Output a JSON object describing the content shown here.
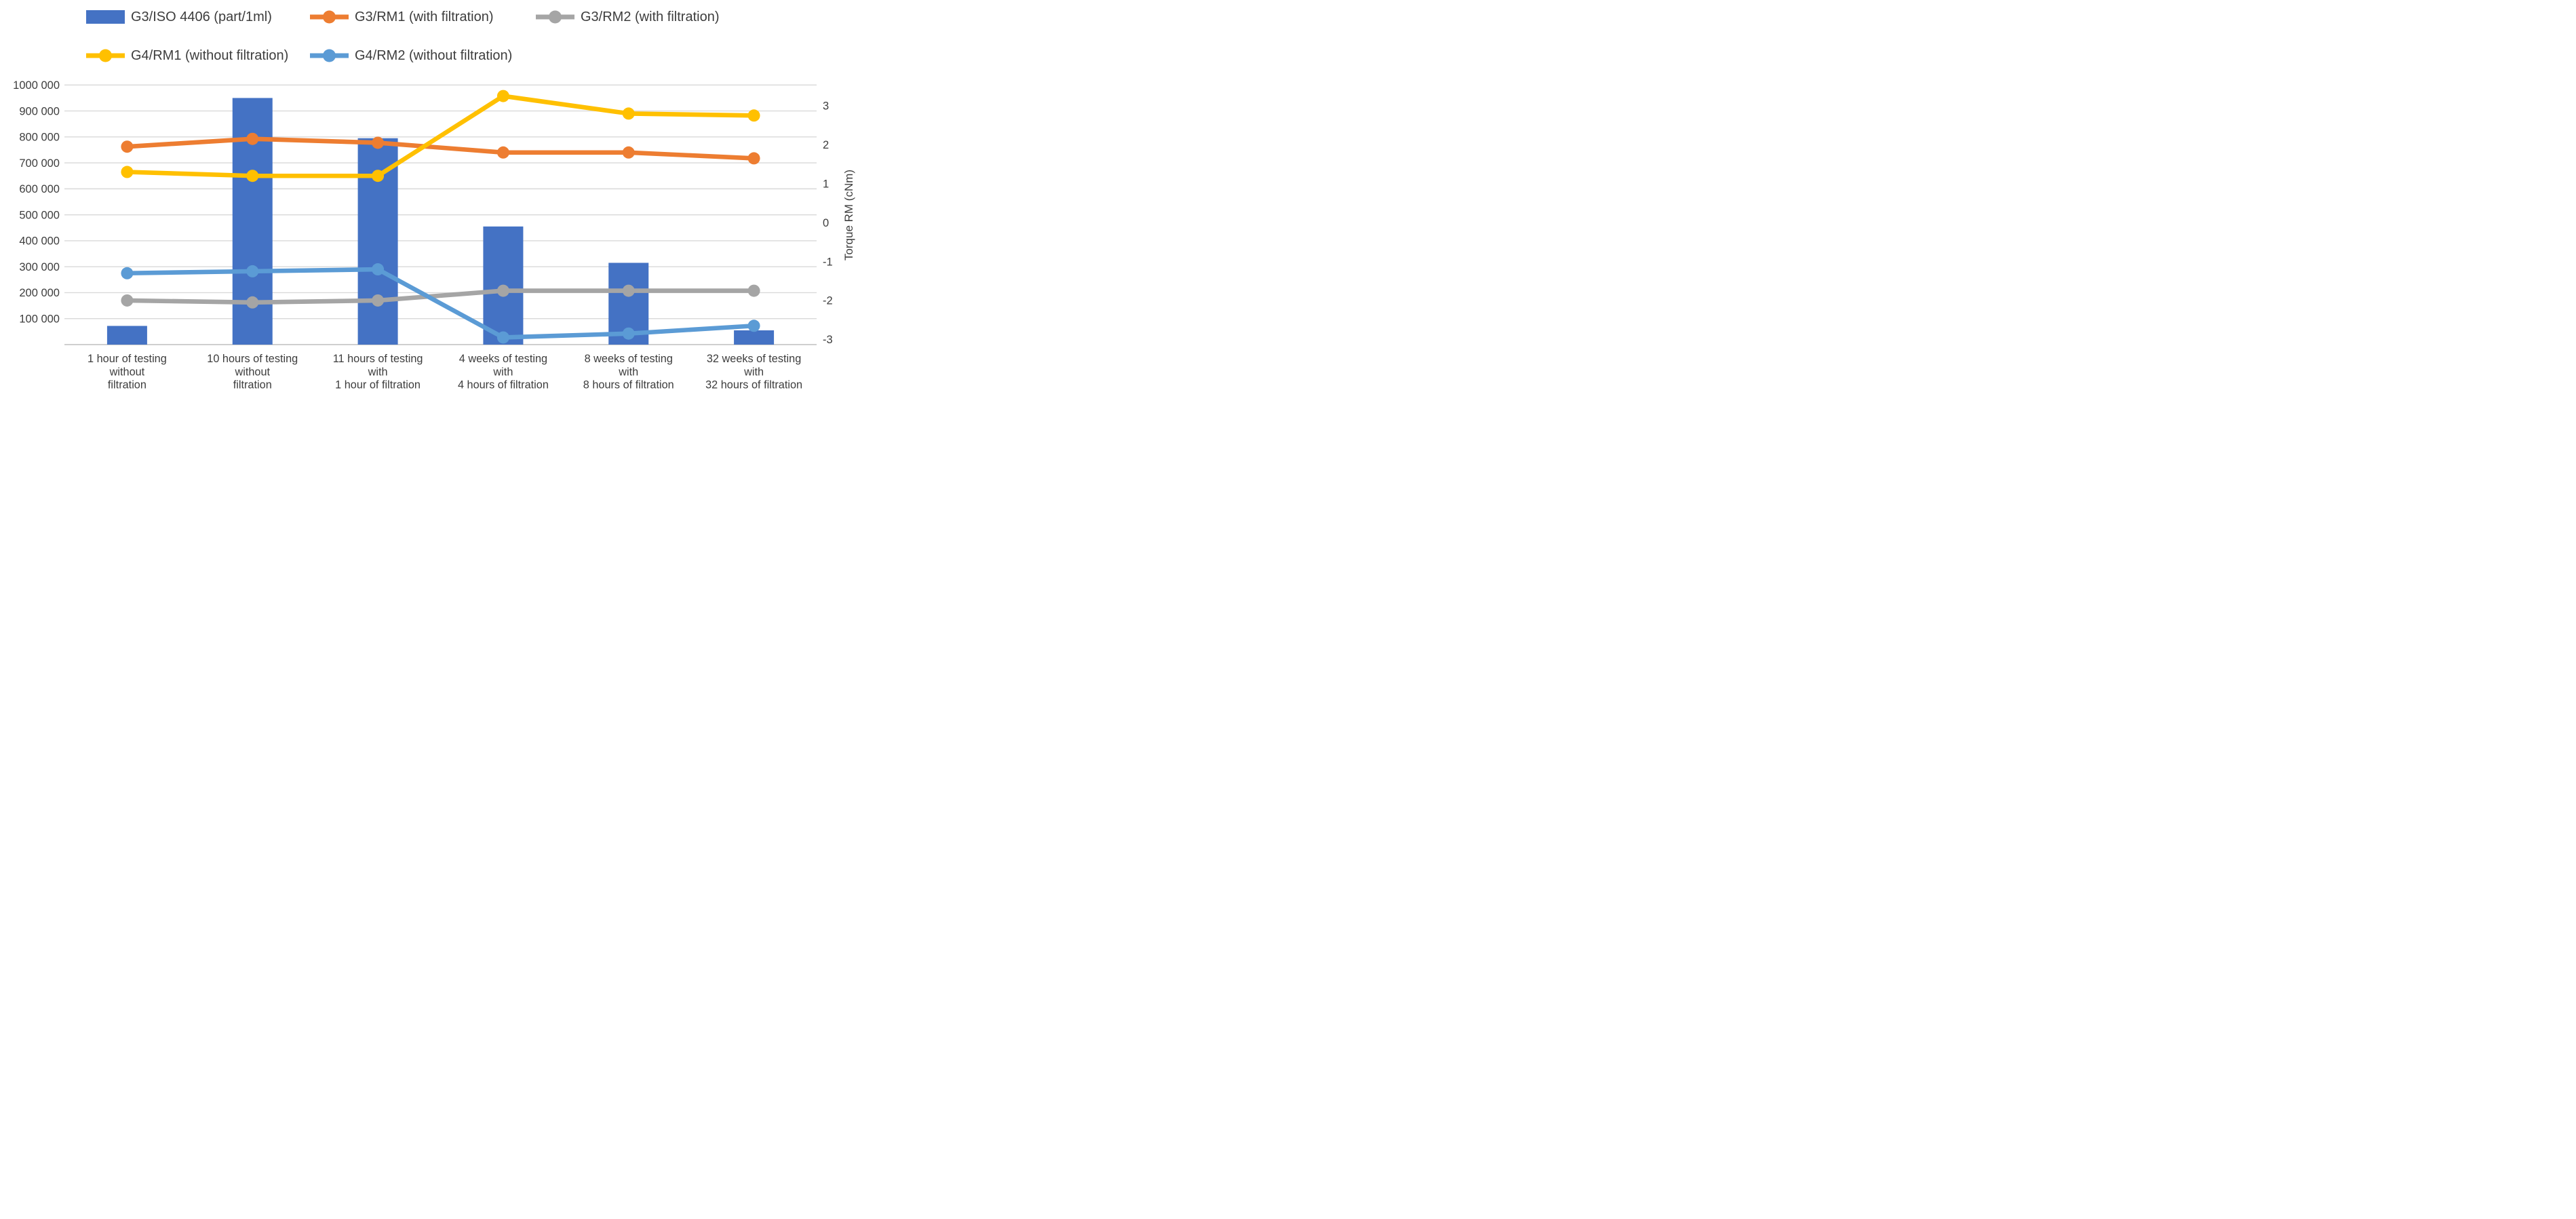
{
  "chart_data": {
    "type": "combo-bar-line",
    "categories": [
      [
        "1 hour of testing",
        "without",
        "filtration"
      ],
      [
        "10 hours of testing",
        "without",
        "filtration"
      ],
      [
        "11 hours of testing",
        "with",
        "1 hour of filtration"
      ],
      [
        "4 weeks of testing",
        "with",
        "4 hours of filtration"
      ],
      [
        "8 weeks of testing",
        "with",
        "8 hours of filtration"
      ],
      [
        "32 weeks of testing",
        "with",
        "32 hours of filtration"
      ]
    ],
    "bar_series": {
      "name": "G3/ISO 4406 (part/1ml)",
      "color": "#4472C4",
      "axis": "left",
      "values": [
        72000,
        950000,
        795000,
        455000,
        315000,
        55000
      ]
    },
    "line_series": [
      {
        "name": "G3/RM1 (with filtration)",
        "color": "#ED7D31",
        "axis": "right",
        "values": [
          1.95,
          2.15,
          2.05,
          1.8,
          1.8,
          1.65
        ]
      },
      {
        "name": "G3/RM2 (with filtration)",
        "color": "#A5A5A5",
        "axis": "right",
        "values": [
          -2.0,
          -2.05,
          -2.0,
          -1.75,
          -1.75,
          -1.75
        ]
      },
      {
        "name": "G4/RM1 (without filtration)",
        "color": "#FFC000",
        "axis": "right",
        "values": [
          1.3,
          1.2,
          1.2,
          3.25,
          2.8,
          2.75
        ]
      },
      {
        "name": "G4/RM2 (without filtration)",
        "color": "#5B9BD5",
        "axis": "right",
        "values": [
          -1.3,
          -1.25,
          -1.2,
          -2.95,
          -2.85,
          -2.65
        ]
      }
    ],
    "left_axis": {
      "ticks": [
        "1000 000",
        "900 000",
        "800 000",
        "700 000",
        "600 000",
        "500 000",
        "400 000",
        "300 000",
        "200 000",
        "100 000"
      ],
      "min": 0,
      "max": 1000000
    },
    "right_axis": {
      "title": "Torque RM (cNm)",
      "ticks": [
        "3",
        "2",
        "1",
        "0",
        "-1",
        "-2",
        "-3"
      ],
      "zero_at_left_equivalent": 470000,
      "unit_in_left_equivalent": 150000,
      "top_value": 3.53,
      "bottom_value": -3.13
    },
    "grid": true,
    "legend_position": "top",
    "colors": {
      "gridline": "#D9D9D9",
      "baseline": "#CFCFCF",
      "text": "#3d3d3d"
    }
  }
}
